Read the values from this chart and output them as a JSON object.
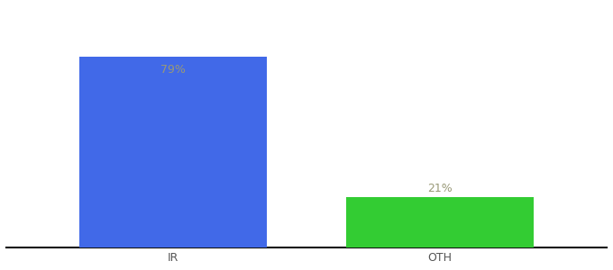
{
  "categories": [
    "IR",
    "OTH"
  ],
  "values": [
    79,
    21
  ],
  "bar_colors": [
    "#4169e8",
    "#33cc33"
  ],
  "label_texts": [
    "79%",
    "21%"
  ],
  "label_color": "#999977",
  "label_fontsize": 9,
  "ylim": [
    0,
    100
  ],
  "background_color": "#ffffff",
  "bar_width": 0.28,
  "tick_fontsize": 9,
  "tick_color": "#555555",
  "spine_color": "#111111",
  "x_positions": [
    0.3,
    0.7
  ]
}
